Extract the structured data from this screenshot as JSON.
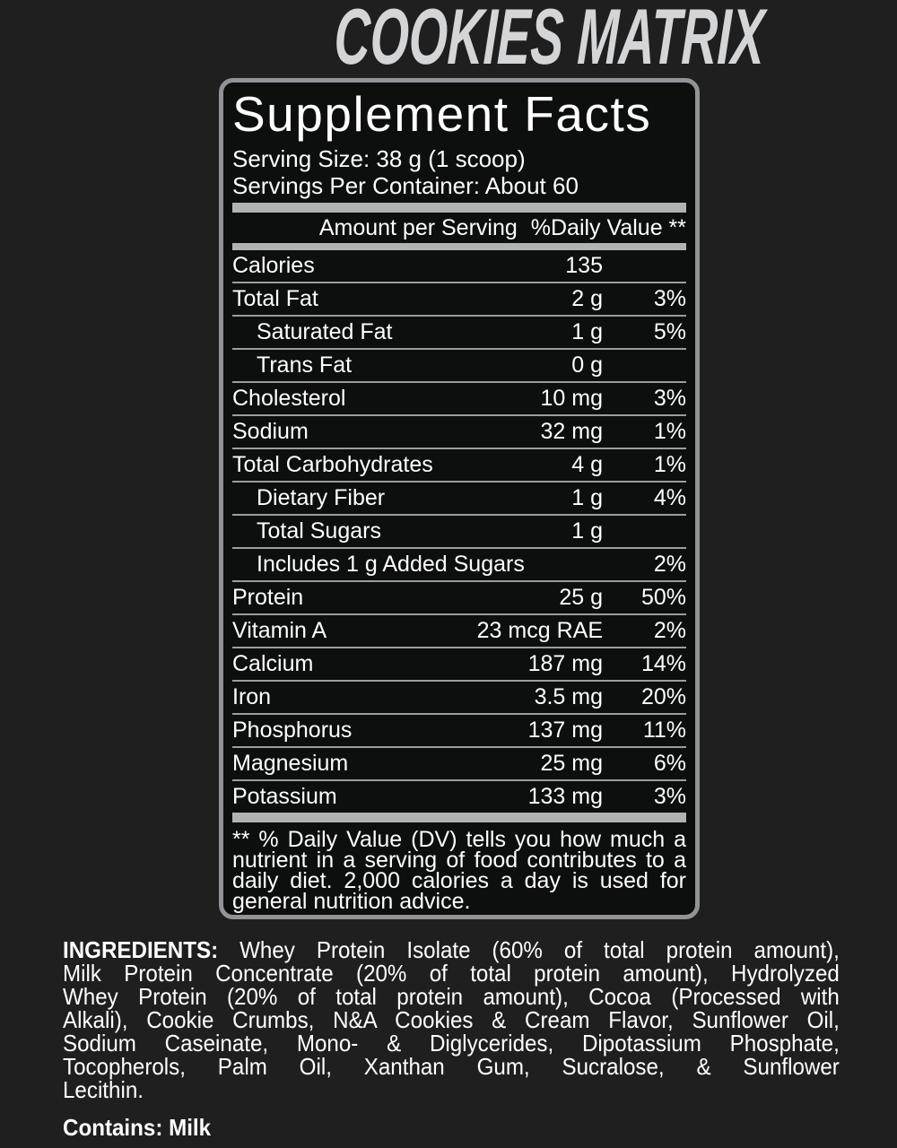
{
  "colors": {
    "page_bg": "#1f1f20",
    "panel_bg": "#0d0e0e",
    "panel_border": "#919496",
    "bar": "#b1b3b3",
    "row_line": "#9b9d9e",
    "text": "#ffffff",
    "brand_title": "#d3d5d7"
  },
  "title": "COOKIES MATRIX",
  "panel": {
    "title": "Supplement Facts",
    "serving_size": "Serving Size: 38 g (1 scoop)",
    "servings_per_container": "Servings Per Container: About 60",
    "column_header": {
      "amount_label": "Amount per Serving",
      "dv_label": "%Daily Value **"
    },
    "rows": [
      {
        "name": "Calories",
        "amount": "135",
        "dv": "",
        "indent": false
      },
      {
        "name": "Total Fat",
        "amount": "2 g",
        "dv": "3%",
        "indent": false
      },
      {
        "name": "Saturated Fat",
        "amount": "1 g",
        "dv": "5%",
        "indent": true
      },
      {
        "name": "Trans Fat",
        "amount": "0 g",
        "dv": "",
        "indent": true
      },
      {
        "name": "Cholesterol",
        "amount": "10 mg",
        "dv": "3%",
        "indent": false
      },
      {
        "name": "Sodium",
        "amount": "32 mg",
        "dv": "1%",
        "indent": false
      },
      {
        "name": "Total Carbohydrates",
        "amount": "4 g",
        "dv": "1%",
        "indent": false
      },
      {
        "name": "Dietary Fiber",
        "amount": "1 g",
        "dv": "4%",
        "indent": true
      },
      {
        "name": "Total Sugars",
        "amount": "1 g",
        "dv": "",
        "indent": true
      },
      {
        "name": "Includes 1 g Added Sugars",
        "amount": "",
        "dv": "2%",
        "indent": true
      },
      {
        "name": "Protein",
        "amount": "25 g",
        "dv": "50%",
        "indent": false
      },
      {
        "name": "Vitamin A",
        "amount": "23 mcg RAE",
        "dv": "2%",
        "indent": false
      },
      {
        "name": "Calcium",
        "amount": "187 mg",
        "dv": "14%",
        "indent": false
      },
      {
        "name": "Iron",
        "amount": "3.5 mg",
        "dv": "20%",
        "indent": false
      },
      {
        "name": "Phosphorus",
        "amount": "137 mg",
        "dv": "11%",
        "indent": false
      },
      {
        "name": "Magnesium",
        "amount": "25 mg",
        "dv": "6%",
        "indent": false
      },
      {
        "name": "Potassium",
        "amount": "133 mg",
        "dv": "3%",
        "indent": false
      }
    ],
    "footnote_lines": [
      "** % Daily Value (DV) tells you how much a",
      "nutrient in a serving of food contributes to a",
      "daily diet. 2,000 calories a day is used for",
      "general nutrition advice."
    ]
  },
  "ingredients": {
    "lines": [
      {
        "bold": "INGREDIENTS:",
        "text": " Whey Protein Isolate (60% of total protein amount),"
      },
      {
        "text": "Milk Protein Concentrate (20% of total protein amount), Hydrolyzed"
      },
      {
        "text": "Whey Protein (20% of total protein amount), Cocoa (Processed with"
      },
      {
        "text": "Alkali), Cookie Crumbs, N&A Cookies & Cream Flavor, Sunflower Oil,"
      },
      {
        "text": "Sodium Caseinate, Mono- & Diglycerides, Dipotassium Phosphate,"
      },
      {
        "text": "Tocopherols, Palm Oil, Xanthan Gum, Sucralose, & Sunflower"
      },
      {
        "text": "Lecithin."
      }
    ]
  },
  "contains": "Contains: Milk"
}
